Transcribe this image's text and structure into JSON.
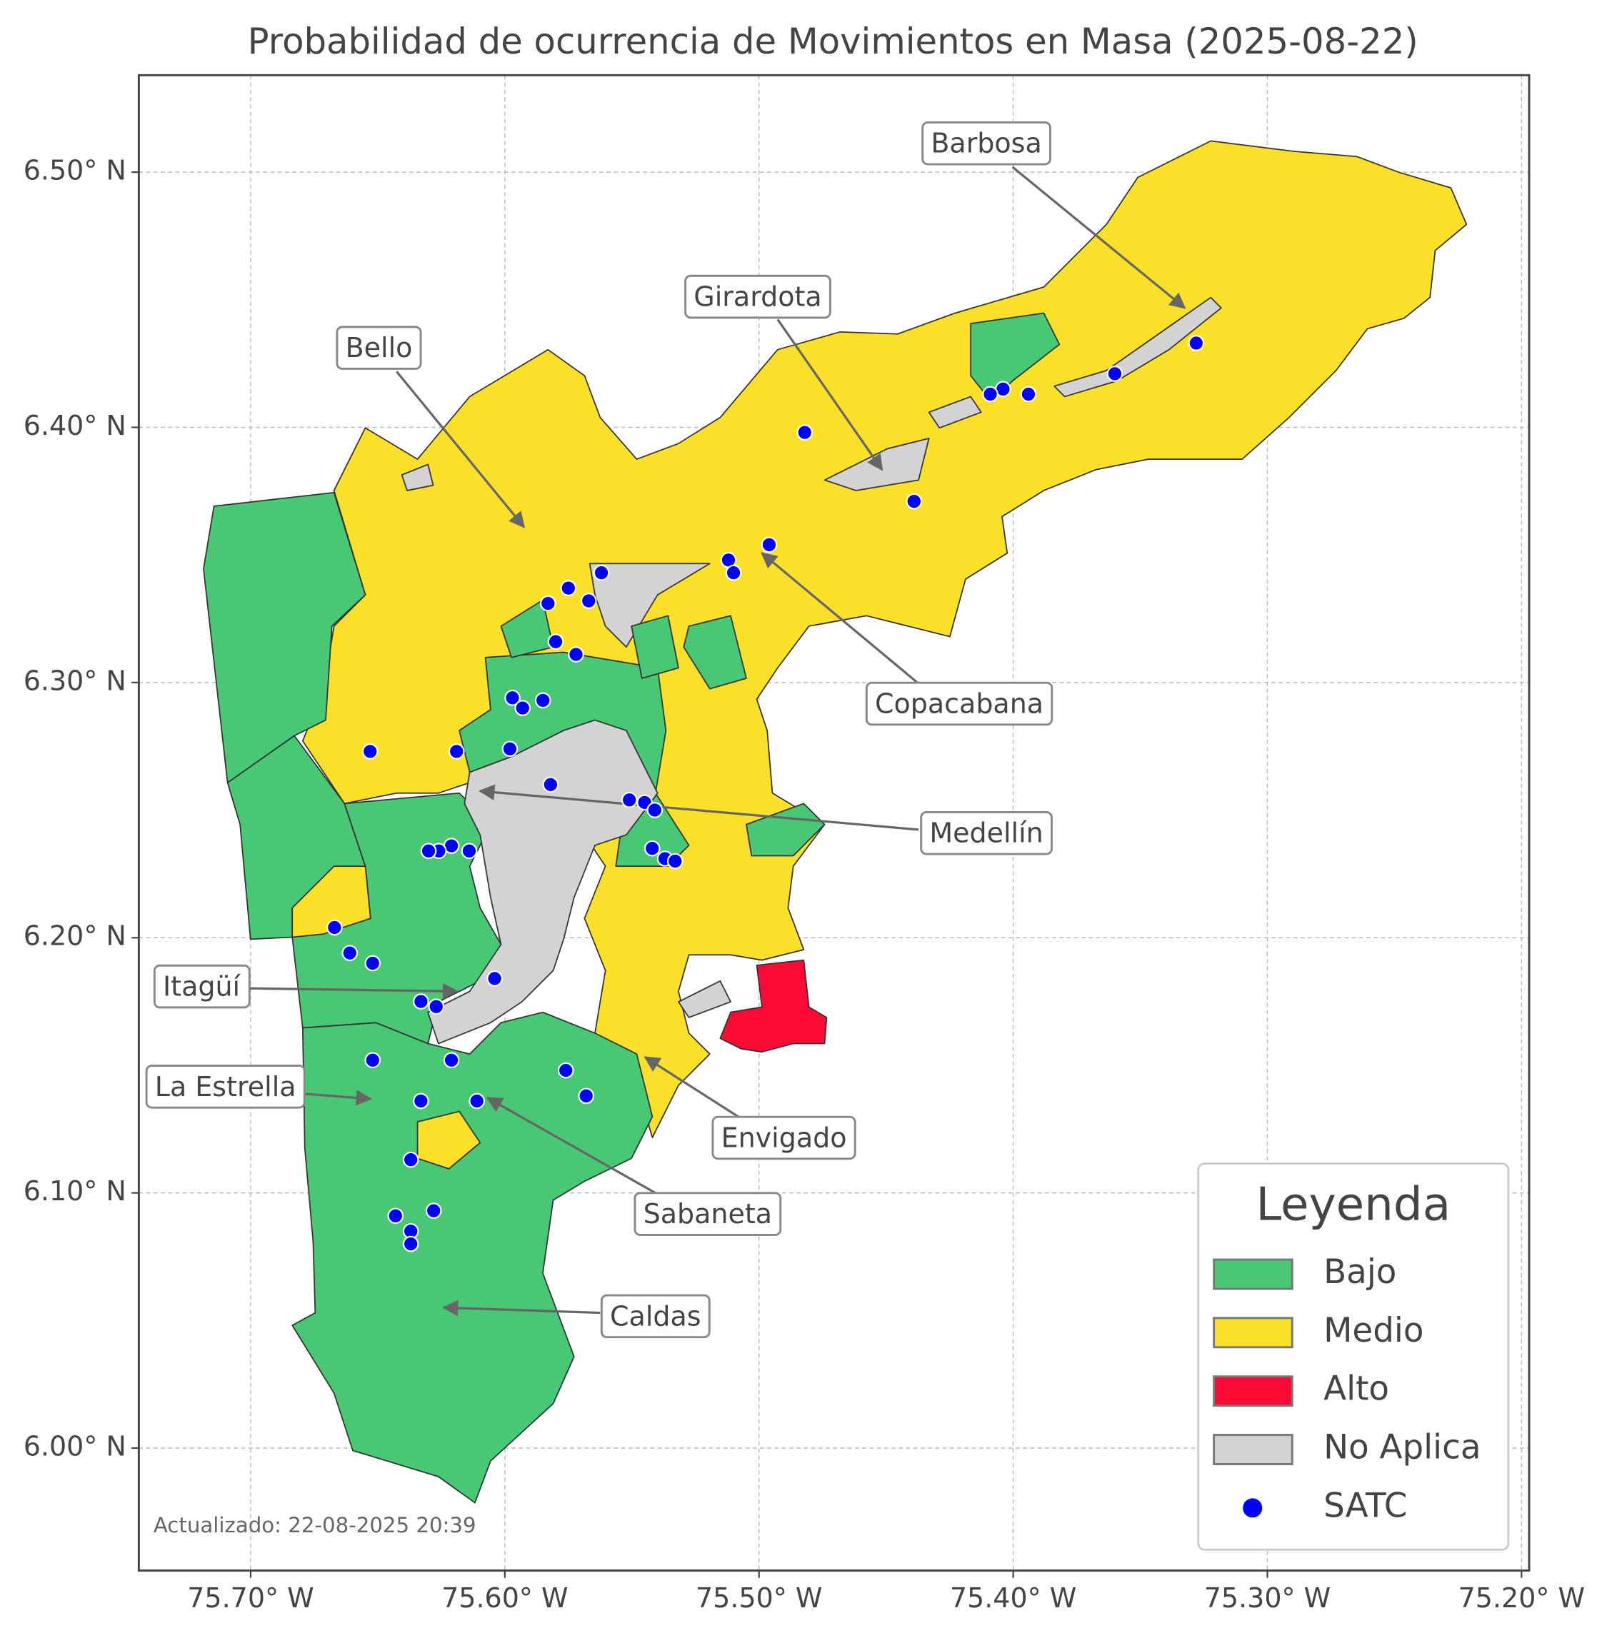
{
  "chart_data": {
    "type": "map",
    "title": "Probabilidad de ocurrencia de Movimientos en Masa (2025-08-22)",
    "xlim": [
      -75.744,
      -75.197
    ],
    "ylim": [
      5.952,
      6.538
    ],
    "xticks": [
      {
        "value": -75.7,
        "label": "75.70° W"
      },
      {
        "value": -75.6,
        "label": "75.60° W"
      },
      {
        "value": -75.5,
        "label": "75.50° W"
      },
      {
        "value": -75.4,
        "label": "75.40° W"
      },
      {
        "value": -75.3,
        "label": "75.30° W"
      },
      {
        "value": -75.2,
        "label": "75.20° W"
      }
    ],
    "yticks": [
      {
        "value": 6.0,
        "label": "6.00° N"
      },
      {
        "value": 6.1,
        "label": "6.10° N"
      },
      {
        "value": 6.2,
        "label": "6.20° N"
      },
      {
        "value": 6.3,
        "label": "6.30° N"
      },
      {
        "value": 6.4,
        "label": "6.40° N"
      },
      {
        "value": 6.5,
        "label": "6.50° N"
      }
    ],
    "grid": true,
    "legend": {
      "title": "Leyenda",
      "corner": "lower right",
      "entries": [
        {
          "name": "Bajo",
          "color": "#48c774"
        },
        {
          "name": "Medio",
          "color": "#fbe02a"
        },
        {
          "name": "Alto",
          "color": "#fc0a34"
        },
        {
          "name": "No Aplica",
          "color": "#d3d3d3"
        }
      ]
    },
    "series": [
      {
        "name": "SATC",
        "color": "#0000ff",
        "x": [
          -75.328,
          -75.36,
          -75.394,
          -75.404,
          -75.409,
          -75.482,
          -75.439,
          -75.496,
          -75.512,
          -75.51,
          -75.562,
          -75.575,
          -75.567,
          -75.583,
          -75.58,
          -75.572,
          -75.597,
          -75.593,
          -75.585,
          -75.619,
          -75.598,
          -75.653,
          -75.582,
          -75.551,
          -75.545,
          -75.541,
          -75.542,
          -75.537,
          -75.533,
          -75.621,
          -75.614,
          -75.626,
          -75.63,
          -75.667,
          -75.661,
          -75.652,
          -75.604,
          -75.633,
          -75.627,
          -75.652,
          -75.621,
          -75.576,
          -75.568,
          -75.633,
          -75.611,
          -75.637,
          -75.643,
          -75.628,
          -75.637,
          -75.637
        ],
        "values": [
          6.433,
          6.421,
          6.413,
          6.415,
          6.413,
          6.398,
          6.371,
          6.354,
          6.348,
          6.343,
          6.343,
          6.337,
          6.332,
          6.331,
          6.316,
          6.311,
          6.294,
          6.29,
          6.293,
          6.273,
          6.274,
          6.273,
          6.26,
          6.254,
          6.253,
          6.25,
          6.235,
          6.231,
          6.23,
          6.236,
          6.234,
          6.234,
          6.234,
          6.204,
          6.194,
          6.19,
          6.184,
          6.175,
          6.173,
          6.152,
          6.152,
          6.148,
          6.138,
          6.136,
          6.136,
          6.113,
          6.091,
          6.093,
          6.085,
          6.08
        ]
      }
    ],
    "annotations": [
      "Barbosa",
      "Girardota",
      "Bello",
      "Copacabana",
      "Medellín",
      "Itagüí",
      "La Estrella",
      "Envigado",
      "Sabaneta",
      "Caldas"
    ],
    "footnote": "Actualizado: 22-08-2025 20:39"
  }
}
